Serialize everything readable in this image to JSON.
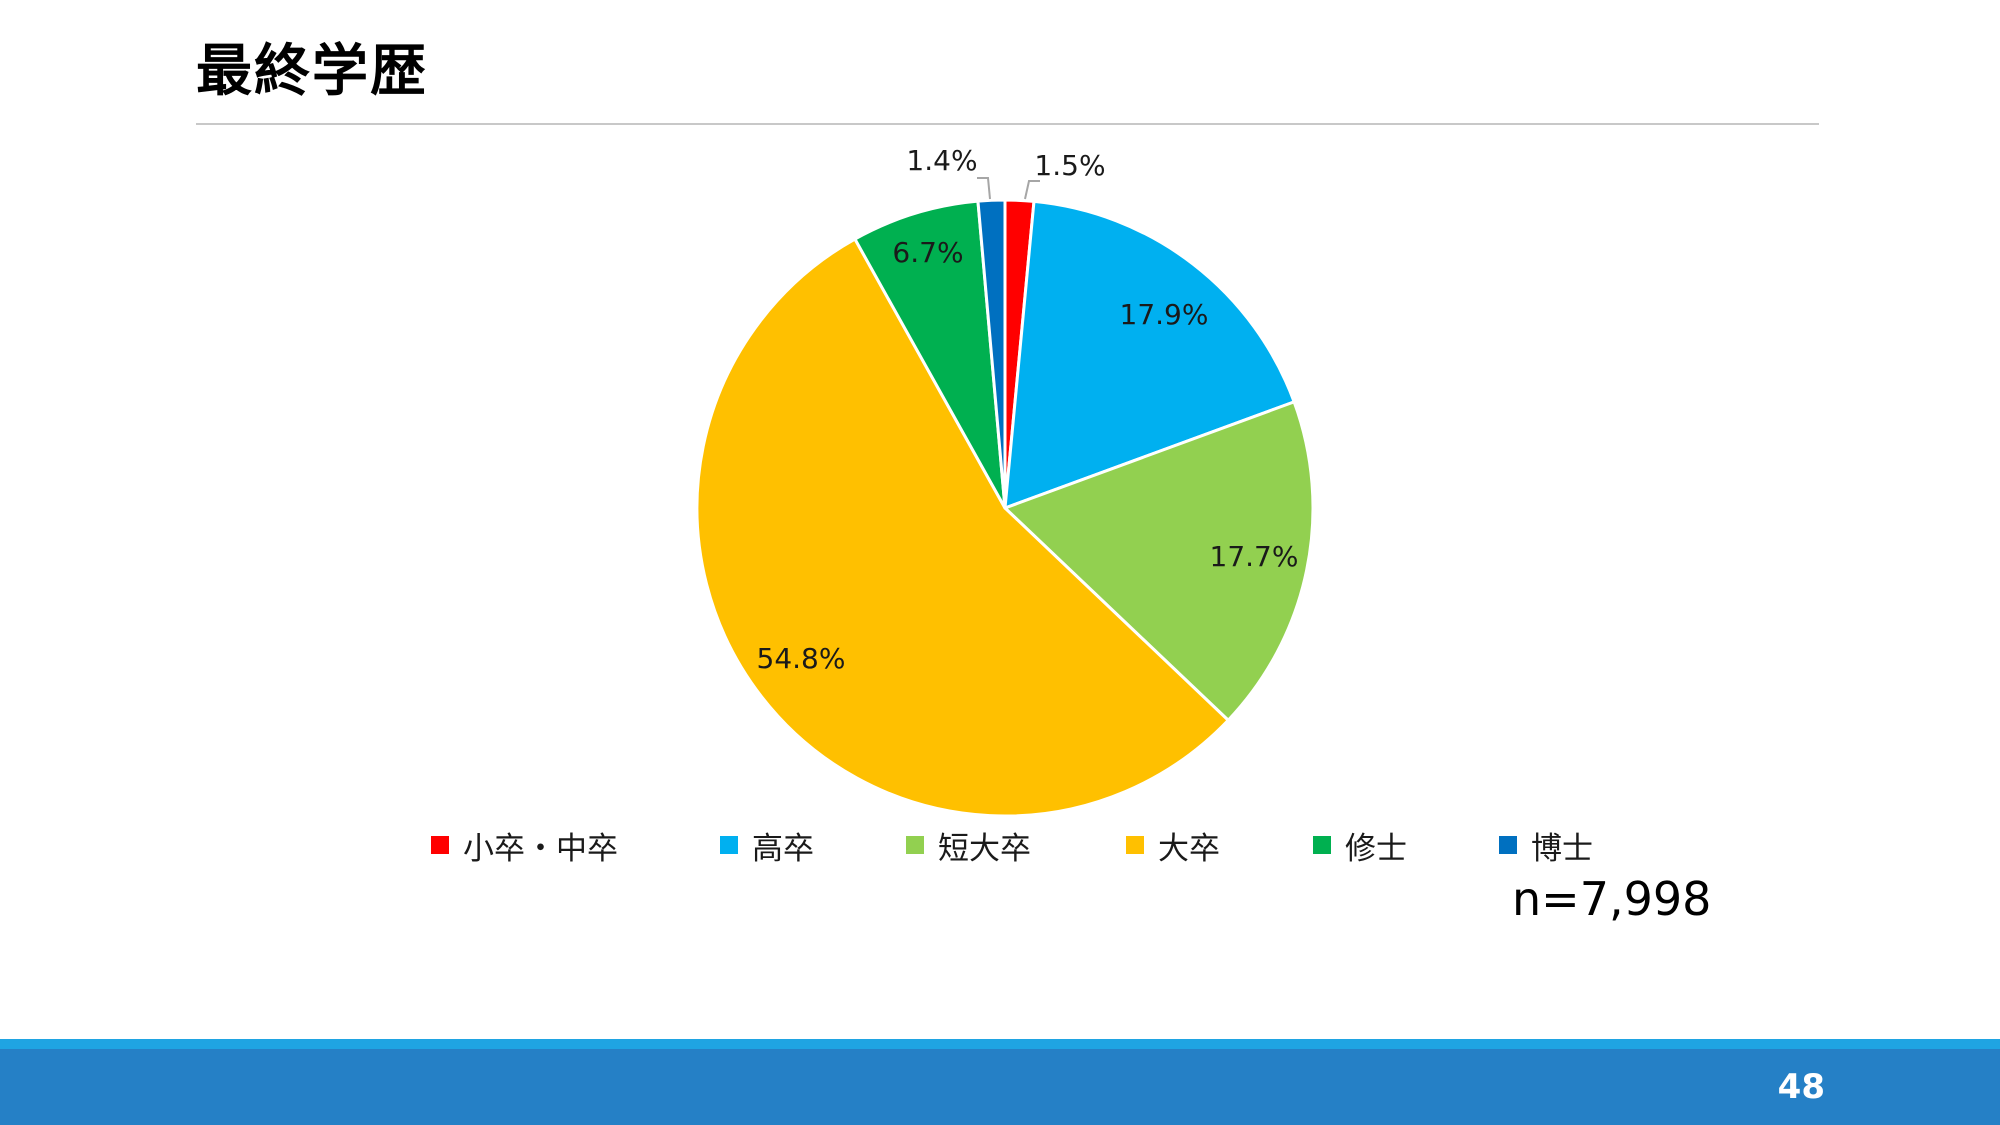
{
  "slide": {
    "title": "最終学歴",
    "sample_size": "n=7,998",
    "page_number": "48"
  },
  "chart_data": {
    "type": "pie",
    "title": "",
    "categories": [
      "小卒・中卒",
      "高卒",
      "短大卒",
      "大卒",
      "修士",
      "博士"
    ],
    "values": [
      1.5,
      17.9,
      17.7,
      54.8,
      6.7,
      1.4
    ],
    "labels": [
      "1.5%",
      "17.9%",
      "17.7%",
      "54.8%",
      "6.7%",
      "1.4%"
    ],
    "colors": [
      "#ff0000",
      "#00b0f0",
      "#92d050",
      "#ffc000",
      "#00b050",
      "#0070c0"
    ],
    "legend_position": "bottom",
    "unit": "%"
  }
}
